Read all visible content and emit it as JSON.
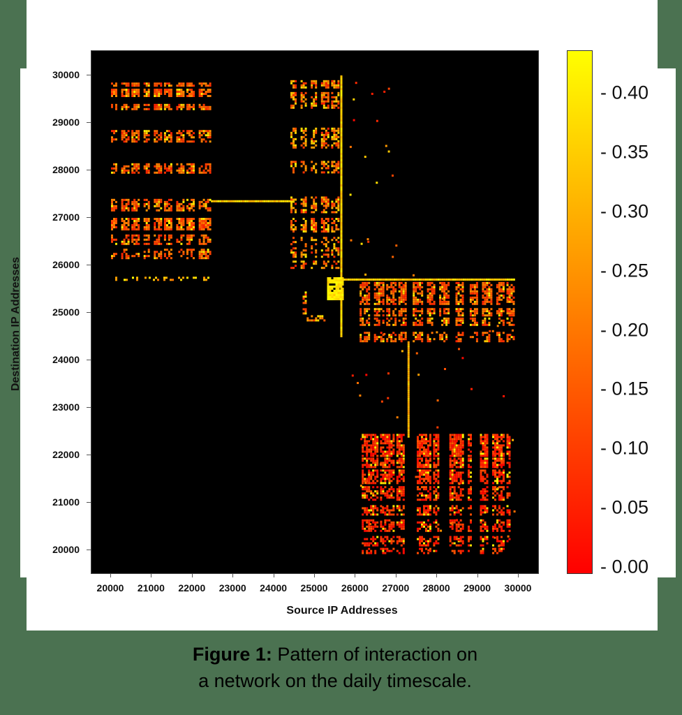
{
  "figure": {
    "caption_label": "Figure 1:",
    "caption_text_line1": " Pattern of interaction on",
    "caption_text_line2": "a network on the daily timescale.",
    "background_color": "#4b7251"
  },
  "chart_data": {
    "type": "heatmap",
    "title": "",
    "xlabel": "Source IP Addresses",
    "ylabel": "Destination IP Addresses",
    "xlim": [
      19700,
      30400
    ],
    "ylim": [
      19500,
      30500
    ],
    "xticks": [
      20000,
      21000,
      22000,
      23000,
      24000,
      25000,
      26000,
      27000,
      28000,
      29000,
      30000
    ],
    "yticks": [
      20000,
      21000,
      22000,
      23000,
      24000,
      25000,
      26000,
      27000,
      28000,
      29000,
      30000
    ],
    "colorbar": {
      "colormap": "autumn (red to yellow)",
      "range": [
        0.0,
        0.43
      ],
      "ticks": [
        "0.00",
        "0.05",
        "0.10",
        "0.15",
        "0.20",
        "0.25",
        "0.30",
        "0.35",
        "0.40"
      ],
      "color_low": "#ff0000",
      "color_high": "#ffff00"
    },
    "background_color": "#000000",
    "clusters": [
      {
        "name": "upper-left block",
        "x_range": [
          20000,
          22450
        ],
        "y_range": [
          26150,
          29850
        ],
        "dominant_value": "0.05-0.25",
        "note": "banded rows near 29800, 29650, 29350, 28700, 28000, 27300, 26850, 26300"
      },
      {
        "name": "upper-middle block",
        "x_range": [
          24400,
          25700
        ],
        "y_range": [
          25900,
          30000
        ],
        "dominant_value": "0.05-0.35"
      },
      {
        "name": "vertical line at x≈25650",
        "x_range": [
          25600,
          25700
        ],
        "y_range": [
          24500,
          30000
        ],
        "dominant_value": "0.30-0.40"
      },
      {
        "name": "horizontal line at y≈27350",
        "x_range": [
          22450,
          24400
        ],
        "y_range": [
          27320,
          27380
        ],
        "dominant_value": "0.30-0.40"
      },
      {
        "name": "horizontal line at y≈25700",
        "x_range": [
          25700,
          29900
        ],
        "y_range": [
          25650,
          25750
        ],
        "dominant_value": "0.30-0.40"
      },
      {
        "name": "hot spot",
        "x_range": [
          25300,
          25700
        ],
        "y_range": [
          25300,
          25750
        ],
        "dominant_value": "0.35-0.43"
      },
      {
        "name": "middle-right block",
        "x_range": [
          26100,
          29900
        ],
        "y_range": [
          24350,
          25650
        ],
        "dominant_value": "0.05-0.25"
      },
      {
        "name": "vertical line at x≈27300",
        "x_range": [
          27270,
          27330
        ],
        "y_range": [
          22400,
          24400
        ],
        "dominant_value": "0.25-0.35"
      },
      {
        "name": "lower-right block",
        "x_range": [
          26100,
          29900
        ],
        "y_range": [
          19950,
          22450
        ],
        "dominant_value": "0.00-0.15",
        "note": "vertical column bands near 26200, 26800, 27100, 27800, 28400, 28900, 29400, 29700"
      }
    ]
  },
  "axes": {
    "x_label": "Source IP Addresses",
    "y_label": "Destination IP Addresses",
    "x_ticks": [
      "20000",
      "21000",
      "22000",
      "23000",
      "24000",
      "25000",
      "26000",
      "27000",
      "28000",
      "29000",
      "30000"
    ],
    "y_ticks": [
      "30000",
      "29000",
      "28000",
      "27000",
      "26000",
      "25000",
      "24000",
      "23000",
      "22000",
      "21000",
      "20000"
    ],
    "cb_ticks": [
      "- 0.40",
      "- 0.35",
      "- 0.30",
      "- 0.25",
      "- 0.20",
      "- 0.15",
      "- 0.10",
      "- 0.05",
      "- 0.00"
    ]
  }
}
